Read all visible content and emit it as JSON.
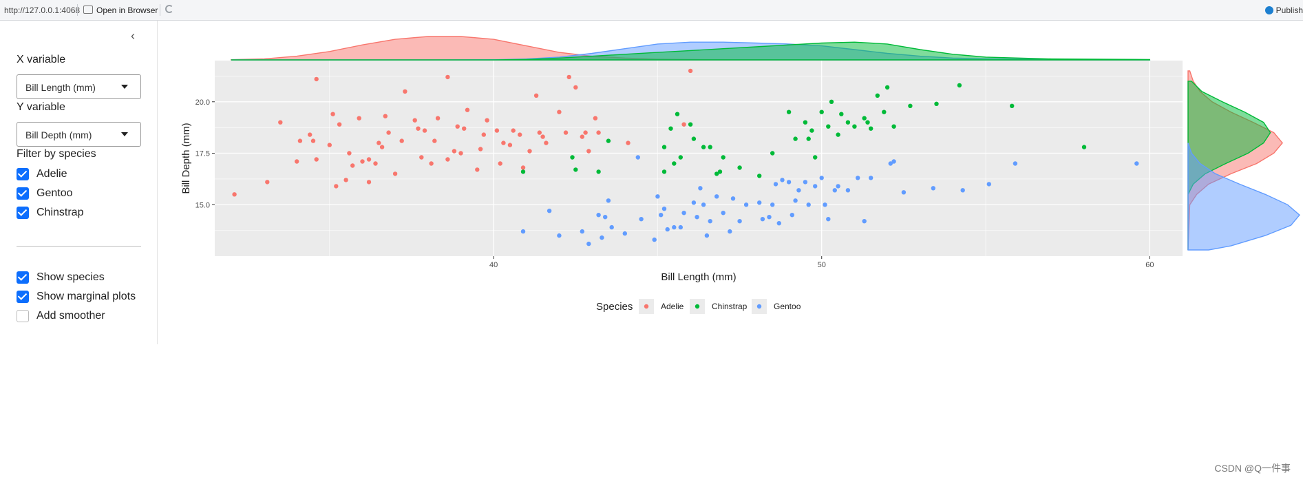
{
  "browser": {
    "url": "http://127.0.0.1:4068",
    "open_label": "Open in Browser",
    "publish_label": "Publish"
  },
  "sidebar": {
    "x_variable_label": "X variable",
    "x_variable_value": "Bill Length (mm)",
    "y_variable_label": "Y variable",
    "y_variable_value": "Bill Depth (mm)",
    "filter_label": "Filter by species",
    "species_checks": [
      {
        "label": "Adelie",
        "checked": true
      },
      {
        "label": "Gentoo",
        "checked": true
      },
      {
        "label": "Chinstrap",
        "checked": true
      }
    ],
    "options": [
      {
        "label": "Show species",
        "checked": true
      },
      {
        "label": "Show marginal plots",
        "checked": true
      },
      {
        "label": "Add smoother",
        "checked": false
      }
    ]
  },
  "colors": {
    "Adelie": "#F8766D",
    "Chinstrap": "#00BA38",
    "Gentoo": "#619CFF",
    "panel_bg": "#EBEBEB",
    "checkbox": "#0d6efd"
  },
  "chart_data": {
    "type": "scatter",
    "xlabel": "Bill Length (mm)",
    "ylabel": "Bill Depth (mm)",
    "xlim": [
      31.5,
      61
    ],
    "ylim": [
      12.5,
      22
    ],
    "x_ticks": [
      "40",
      "50",
      "60"
    ],
    "y_ticks": [
      "15.0",
      "17.5",
      "20.0"
    ],
    "legend_title": "Species",
    "legend_position": "bottom",
    "marginal": "density",
    "grid": true,
    "series": [
      {
        "name": "Adelie",
        "points": [
          [
            32.1,
            15.5
          ],
          [
            33.1,
            16.1
          ],
          [
            33.5,
            19.0
          ],
          [
            34.0,
            17.1
          ],
          [
            34.1,
            18.1
          ],
          [
            34.4,
            18.4
          ],
          [
            34.5,
            18.1
          ],
          [
            34.6,
            21.1
          ],
          [
            34.6,
            17.2
          ],
          [
            35.0,
            17.9
          ],
          [
            35.1,
            19.4
          ],
          [
            35.2,
            15.9
          ],
          [
            35.3,
            18.9
          ],
          [
            35.5,
            16.2
          ],
          [
            35.6,
            17.5
          ],
          [
            35.7,
            16.9
          ],
          [
            35.9,
            19.2
          ],
          [
            36.0,
            17.1
          ],
          [
            36.2,
            17.2
          ],
          [
            36.2,
            16.1
          ],
          [
            36.4,
            17.0
          ],
          [
            36.5,
            18.0
          ],
          [
            36.6,
            17.8
          ],
          [
            36.7,
            19.3
          ],
          [
            36.8,
            18.5
          ],
          [
            37.0,
            16.5
          ],
          [
            37.2,
            18.1
          ],
          [
            37.3,
            20.5
          ],
          [
            37.6,
            19.1
          ],
          [
            37.7,
            18.7
          ],
          [
            37.8,
            17.3
          ],
          [
            37.9,
            18.6
          ],
          [
            38.1,
            17.0
          ],
          [
            38.2,
            18.1
          ],
          [
            38.3,
            19.2
          ],
          [
            38.6,
            21.2
          ],
          [
            38.6,
            17.2
          ],
          [
            38.8,
            17.6
          ],
          [
            38.9,
            18.8
          ],
          [
            39.0,
            17.5
          ],
          [
            39.1,
            18.7
          ],
          [
            39.2,
            19.6
          ],
          [
            39.5,
            16.7
          ],
          [
            39.6,
            17.7
          ],
          [
            39.7,
            18.4
          ],
          [
            39.8,
            19.1
          ],
          [
            40.1,
            18.6
          ],
          [
            40.2,
            17.0
          ],
          [
            40.3,
            18.0
          ],
          [
            40.5,
            17.9
          ],
          [
            40.6,
            18.6
          ],
          [
            40.8,
            18.4
          ],
          [
            40.9,
            16.8
          ],
          [
            41.1,
            17.6
          ],
          [
            41.3,
            20.3
          ],
          [
            41.4,
            18.5
          ],
          [
            41.5,
            18.3
          ],
          [
            41.6,
            18.0
          ],
          [
            42.0,
            19.5
          ],
          [
            42.2,
            18.5
          ],
          [
            42.3,
            21.2
          ],
          [
            42.5,
            20.7
          ],
          [
            42.7,
            18.3
          ],
          [
            42.8,
            18.5
          ],
          [
            42.9,
            17.6
          ],
          [
            43.1,
            19.2
          ],
          [
            43.2,
            18.5
          ],
          [
            44.1,
            18.0
          ],
          [
            45.8,
            18.9
          ],
          [
            46.0,
            21.5
          ]
        ]
      },
      {
        "name": "Chinstrap",
        "points": [
          [
            40.9,
            16.6
          ],
          [
            42.4,
            17.3
          ],
          [
            42.5,
            16.7
          ],
          [
            43.2,
            16.6
          ],
          [
            43.5,
            18.1
          ],
          [
            45.2,
            16.6
          ],
          [
            45.2,
            17.8
          ],
          [
            45.4,
            18.7
          ],
          [
            45.5,
            17.0
          ],
          [
            45.6,
            19.4
          ],
          [
            45.7,
            17.3
          ],
          [
            46.0,
            18.9
          ],
          [
            46.1,
            18.2
          ],
          [
            46.4,
            17.8
          ],
          [
            46.6,
            17.8
          ],
          [
            46.8,
            16.5
          ],
          [
            46.9,
            16.6
          ],
          [
            47.0,
            17.3
          ],
          [
            47.5,
            16.8
          ],
          [
            48.1,
            16.4
          ],
          [
            48.5,
            17.5
          ],
          [
            49.0,
            19.5
          ],
          [
            49.2,
            18.2
          ],
          [
            49.5,
            19.0
          ],
          [
            49.6,
            18.2
          ],
          [
            49.7,
            18.6
          ],
          [
            49.8,
            17.3
          ],
          [
            50.0,
            19.5
          ],
          [
            50.2,
            18.8
          ],
          [
            50.3,
            20.0
          ],
          [
            50.5,
            18.4
          ],
          [
            50.6,
            19.4
          ],
          [
            50.8,
            19.0
          ],
          [
            51.0,
            18.8
          ],
          [
            51.3,
            19.2
          ],
          [
            51.4,
            19.0
          ],
          [
            51.5,
            18.7
          ],
          [
            51.7,
            20.3
          ],
          [
            51.9,
            19.5
          ],
          [
            52.0,
            20.7
          ],
          [
            52.2,
            18.8
          ],
          [
            52.7,
            19.8
          ],
          [
            53.5,
            19.9
          ],
          [
            54.2,
            20.8
          ],
          [
            55.8,
            19.8
          ],
          [
            58.0,
            17.8
          ]
        ]
      },
      {
        "name": "Gentoo",
        "points": [
          [
            40.9,
            13.7
          ],
          [
            41.7,
            14.7
          ],
          [
            42.0,
            13.5
          ],
          [
            42.7,
            13.7
          ],
          [
            42.9,
            13.1
          ],
          [
            43.2,
            14.5
          ],
          [
            43.3,
            13.4
          ],
          [
            43.4,
            14.4
          ],
          [
            43.5,
            15.2
          ],
          [
            43.6,
            13.9
          ],
          [
            44.0,
            13.6
          ],
          [
            44.4,
            17.3
          ],
          [
            44.5,
            14.3
          ],
          [
            44.9,
            13.3
          ],
          [
            45.0,
            15.4
          ],
          [
            45.1,
            14.5
          ],
          [
            45.2,
            14.8
          ],
          [
            45.3,
            13.8
          ],
          [
            45.5,
            13.9
          ],
          [
            45.7,
            13.9
          ],
          [
            45.8,
            14.6
          ],
          [
            46.1,
            15.1
          ],
          [
            46.2,
            14.4
          ],
          [
            46.3,
            15.8
          ],
          [
            46.4,
            15.0
          ],
          [
            46.5,
            13.5
          ],
          [
            46.6,
            14.2
          ],
          [
            46.8,
            15.4
          ],
          [
            47.0,
            14.6
          ],
          [
            47.2,
            13.7
          ],
          [
            47.3,
            15.3
          ],
          [
            47.5,
            14.2
          ],
          [
            47.7,
            15.0
          ],
          [
            48.1,
            15.1
          ],
          [
            48.2,
            14.3
          ],
          [
            48.4,
            14.4
          ],
          [
            48.5,
            15.0
          ],
          [
            48.6,
            16.0
          ],
          [
            48.7,
            14.1
          ],
          [
            48.8,
            16.2
          ],
          [
            49.0,
            16.1
          ],
          [
            49.1,
            14.5
          ],
          [
            49.2,
            15.2
          ],
          [
            49.3,
            15.7
          ],
          [
            49.5,
            16.1
          ],
          [
            49.6,
            15.0
          ],
          [
            49.8,
            15.9
          ],
          [
            50.0,
            16.3
          ],
          [
            50.1,
            15.0
          ],
          [
            50.2,
            14.3
          ],
          [
            50.4,
            15.7
          ],
          [
            50.5,
            15.9
          ],
          [
            50.8,
            15.7
          ],
          [
            51.1,
            16.3
          ],
          [
            51.3,
            14.2
          ],
          [
            51.5,
            16.3
          ],
          [
            52.1,
            17.0
          ],
          [
            52.2,
            17.1
          ],
          [
            52.5,
            15.6
          ],
          [
            53.4,
            15.8
          ],
          [
            54.3,
            15.7
          ],
          [
            55.1,
            16.0
          ],
          [
            55.9,
            17.0
          ],
          [
            59.6,
            17.0
          ]
        ]
      }
    ],
    "x_density": [
      {
        "name": "Adelie",
        "x": [
          32,
          33,
          34,
          35,
          36,
          37,
          38,
          39,
          40,
          41,
          42,
          43,
          44,
          45,
          46,
          48,
          50,
          55,
          60
        ],
        "y": [
          0.002,
          0.01,
          0.04,
          0.09,
          0.16,
          0.22,
          0.25,
          0.25,
          0.22,
          0.15,
          0.08,
          0.04,
          0.02,
          0.008,
          0.004,
          0.002,
          0.001,
          0.0,
          0.0
        ]
      },
      {
        "name": "Gentoo",
        "x": [
          32,
          38,
          40,
          41,
          42,
          43,
          44,
          45,
          46,
          47,
          48,
          49,
          50,
          51,
          52,
          53,
          54,
          55,
          57,
          60
        ],
        "y": [
          0.0,
          0.0,
          0.002,
          0.01,
          0.03,
          0.07,
          0.12,
          0.17,
          0.19,
          0.19,
          0.18,
          0.17,
          0.15,
          0.11,
          0.07,
          0.04,
          0.02,
          0.012,
          0.006,
          0.002
        ]
      },
      {
        "name": "Chinstrap",
        "x": [
          32,
          40,
          41,
          42,
          43,
          44,
          45,
          46,
          47,
          48,
          49,
          50,
          51,
          52,
          53,
          54,
          55,
          57,
          60
        ],
        "y": [
          0.0,
          0.001,
          0.005,
          0.02,
          0.04,
          0.06,
          0.08,
          0.1,
          0.12,
          0.14,
          0.16,
          0.18,
          0.19,
          0.17,
          0.11,
          0.06,
          0.03,
          0.01,
          0.004
        ]
      }
    ],
    "y_density": [
      {
        "name": "Adelie",
        "y": [
          12.8,
          15,
          15.5,
          16,
          16.5,
          17,
          17.5,
          18,
          18.5,
          19,
          19.5,
          20,
          20.5,
          21,
          21.5
        ],
        "d": [
          0.0,
          0.01,
          0.05,
          0.12,
          0.25,
          0.4,
          0.5,
          0.55,
          0.5,
          0.38,
          0.25,
          0.14,
          0.07,
          0.03,
          0.01
        ]
      },
      {
        "name": "Chinstrap",
        "y": [
          12.8,
          15.5,
          16,
          16.5,
          17,
          17.5,
          18,
          18.5,
          19,
          19.5,
          20,
          20.5,
          21
        ],
        "d": [
          0.0,
          0.0,
          0.03,
          0.1,
          0.22,
          0.35,
          0.44,
          0.48,
          0.44,
          0.33,
          0.2,
          0.08,
          0.02
        ]
      },
      {
        "name": "Gentoo",
        "y": [
          12.8,
          13,
          13.5,
          14,
          14.5,
          15,
          15.5,
          16,
          16.5,
          17,
          17.5,
          18
        ],
        "d": [
          0.12,
          0.25,
          0.45,
          0.6,
          0.65,
          0.58,
          0.45,
          0.3,
          0.16,
          0.07,
          0.02,
          0.0
        ]
      }
    ]
  },
  "watermark": "CSDN @Q一件事"
}
